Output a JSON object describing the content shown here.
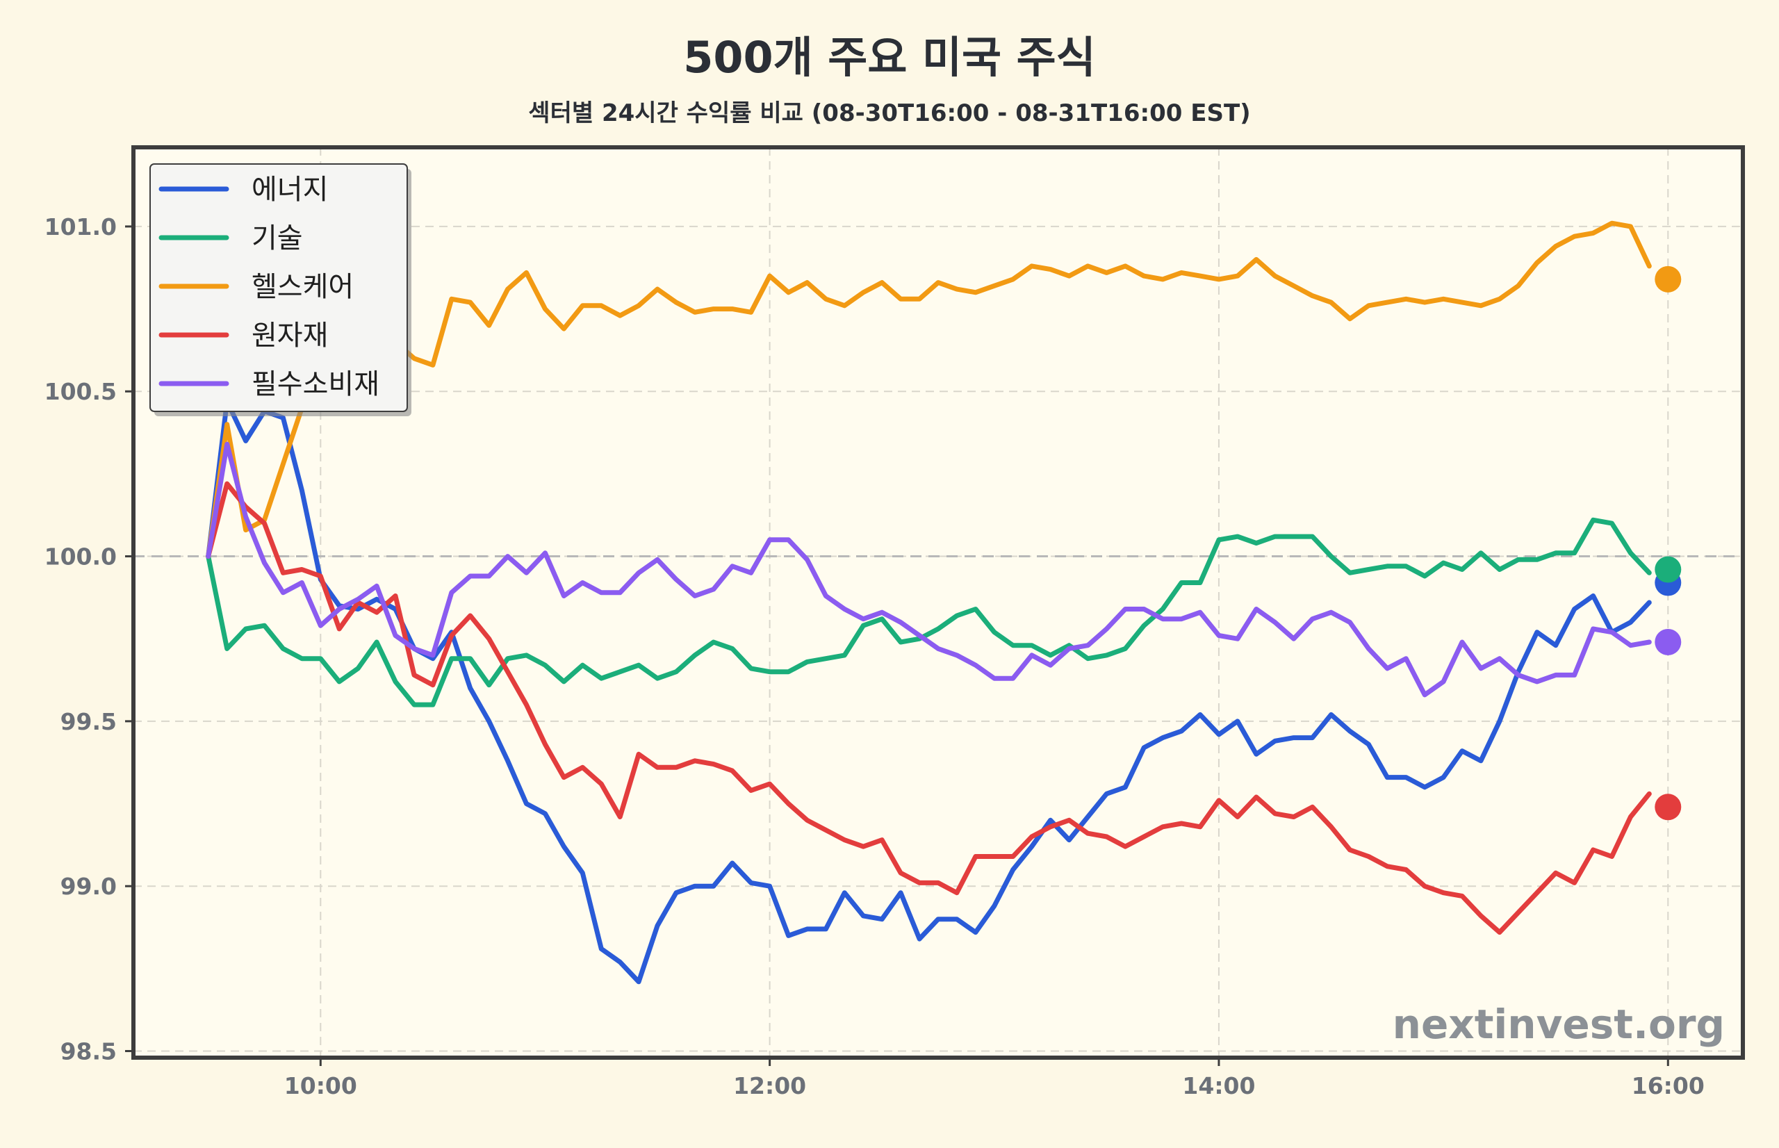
{
  "chart_data": {
    "type": "line",
    "title": "500개 주요 미국 주식",
    "subtitle": "섹터별 24시간 수익률 비교 (08-30T16:00 - 08-31T16:00 EST)",
    "xlabel": "",
    "ylabel": "",
    "watermark": "nextinvest.org",
    "x_ticks": [
      "10:00",
      "12:00",
      "14:00",
      "16:00"
    ],
    "y_ticks": [
      "98.5",
      "99.0",
      "99.5",
      "100.0",
      "100.5",
      "101.0"
    ],
    "xlim": [
      "09:10",
      "16:20"
    ],
    "ylim": [
      98.48,
      101.24
    ],
    "baseline": 100.0,
    "grid": true,
    "legend_position": "top-left",
    "x": [
      "09:30",
      "09:35",
      "09:40",
      "09:45",
      "09:50",
      "09:55",
      "10:00",
      "10:05",
      "10:10",
      "10:15",
      "10:20",
      "10:25",
      "10:30",
      "10:35",
      "10:40",
      "10:45",
      "10:50",
      "10:55",
      "11:00",
      "11:05",
      "11:10",
      "11:15",
      "11:20",
      "11:25",
      "11:30",
      "11:35",
      "11:40",
      "11:45",
      "11:50",
      "11:55",
      "12:00",
      "12:05",
      "12:10",
      "12:15",
      "12:20",
      "12:25",
      "12:30",
      "12:35",
      "12:40",
      "12:45",
      "12:50",
      "12:55",
      "13:00",
      "13:05",
      "13:10",
      "13:15",
      "13:20",
      "13:25",
      "13:30",
      "13:35",
      "13:40",
      "13:45",
      "13:50",
      "13:55",
      "14:00",
      "14:05",
      "14:10",
      "14:15",
      "14:20",
      "14:25",
      "14:30",
      "14:35",
      "14:40",
      "14:45",
      "14:50",
      "14:55",
      "15:00",
      "15:05",
      "15:10",
      "15:15",
      "15:20",
      "15:25",
      "15:30",
      "15:35",
      "15:40",
      "15:45",
      "15:50",
      "15:55"
    ],
    "end_x": "16:00",
    "series": [
      {
        "name": "에너지",
        "color": "#2a5bd7",
        "values": [
          100.0,
          100.47,
          100.35,
          100.44,
          100.42,
          100.2,
          99.93,
          99.85,
          99.84,
          99.87,
          99.84,
          99.72,
          99.69,
          99.77,
          99.6,
          99.5,
          99.38,
          99.25,
          99.22,
          99.12,
          99.04,
          98.81,
          98.77,
          98.71,
          98.88,
          98.98,
          99.0,
          99.0,
          99.07,
          99.01,
          99.0,
          98.85,
          98.87,
          98.87,
          98.98,
          98.91,
          98.9,
          98.98,
          98.84,
          98.9,
          98.9,
          98.86,
          98.94,
          99.05,
          99.12,
          99.2,
          99.14,
          99.21,
          99.28,
          99.3,
          99.42,
          99.45,
          99.47,
          99.52,
          99.46,
          99.5,
          99.4,
          99.44,
          99.45,
          99.45,
          99.52,
          99.47,
          99.43,
          99.33,
          99.33,
          99.3,
          99.33,
          99.41,
          99.38,
          99.5,
          99.65,
          99.77,
          99.73,
          99.84,
          99.88,
          99.77,
          99.8,
          99.86
        ],
        "end_value": 99.92
      },
      {
        "name": "기술",
        "color": "#1bae7a",
        "values": [
          100.0,
          99.72,
          99.78,
          99.79,
          99.72,
          99.69,
          99.69,
          99.62,
          99.66,
          99.74,
          99.62,
          99.55,
          99.55,
          99.69,
          99.69,
          99.61,
          99.69,
          99.7,
          99.67,
          99.62,
          99.67,
          99.63,
          99.65,
          99.67,
          99.63,
          99.65,
          99.7,
          99.74,
          99.72,
          99.66,
          99.65,
          99.65,
          99.68,
          99.69,
          99.7,
          99.79,
          99.81,
          99.74,
          99.75,
          99.78,
          99.82,
          99.84,
          99.77,
          99.73,
          99.73,
          99.7,
          99.73,
          99.69,
          99.7,
          99.72,
          99.79,
          99.84,
          99.92,
          99.92,
          100.05,
          100.06,
          100.04,
          100.06,
          100.06,
          100.06,
          100.0,
          99.95,
          99.96,
          99.97,
          99.97,
          99.94,
          99.98,
          99.96,
          100.01,
          99.96,
          99.99,
          99.99,
          100.01,
          100.01,
          100.11,
          100.1,
          100.01,
          99.95
        ],
        "end_value": 99.96
      },
      {
        "name": "헬스케어",
        "color": "#f29a13",
        "values": [
          100.0,
          100.4,
          100.08,
          100.11,
          100.28,
          100.45,
          100.62,
          100.8,
          100.84,
          100.72,
          100.65,
          100.6,
          100.58,
          100.78,
          100.77,
          100.7,
          100.81,
          100.86,
          100.75,
          100.69,
          100.76,
          100.76,
          100.73,
          100.76,
          100.81,
          100.77,
          100.74,
          100.75,
          100.75,
          100.74,
          100.85,
          100.8,
          100.83,
          100.78,
          100.76,
          100.8,
          100.83,
          100.78,
          100.78,
          100.83,
          100.81,
          100.8,
          100.82,
          100.84,
          100.88,
          100.87,
          100.85,
          100.88,
          100.86,
          100.88,
          100.85,
          100.84,
          100.86,
          100.85,
          100.84,
          100.85,
          100.9,
          100.85,
          100.82,
          100.79,
          100.77,
          100.72,
          100.76,
          100.77,
          100.78,
          100.77,
          100.78,
          100.77,
          100.76,
          100.78,
          100.82,
          100.89,
          100.94,
          100.97,
          100.98,
          101.01,
          101.0,
          100.88
        ],
        "end_value": 100.84
      },
      {
        "name": "원자재",
        "color": "#e33d3d",
        "values": [
          100.0,
          100.22,
          100.15,
          100.1,
          99.95,
          99.96,
          99.94,
          99.78,
          99.86,
          99.83,
          99.88,
          99.64,
          99.61,
          99.76,
          99.82,
          99.75,
          99.65,
          99.55,
          99.43,
          99.33,
          99.36,
          99.31,
          99.21,
          99.4,
          99.36,
          99.36,
          99.38,
          99.37,
          99.35,
          99.29,
          99.31,
          99.25,
          99.2,
          99.17,
          99.14,
          99.12,
          99.14,
          99.04,
          99.01,
          99.01,
          98.98,
          99.09,
          99.09,
          99.09,
          99.15,
          99.18,
          99.2,
          99.16,
          99.15,
          99.12,
          99.15,
          99.18,
          99.19,
          99.18,
          99.26,
          99.21,
          99.27,
          99.22,
          99.21,
          99.24,
          99.18,
          99.11,
          99.09,
          99.06,
          99.05,
          99.0,
          98.98,
          98.97,
          98.91,
          98.86,
          98.92,
          98.98,
          99.04,
          99.01,
          99.11,
          99.09,
          99.21,
          99.28
        ],
        "end_value": 99.24
      },
      {
        "name": "필수소비재",
        "color": "#8b5cf0",
        "values": [
          100.0,
          100.34,
          100.12,
          99.98,
          99.89,
          99.92,
          99.79,
          99.84,
          99.87,
          99.91,
          99.76,
          99.72,
          99.7,
          99.89,
          99.94,
          99.94,
          100.0,
          99.95,
          100.01,
          99.88,
          99.92,
          99.89,
          99.89,
          99.95,
          99.99,
          99.93,
          99.88,
          99.9,
          99.97,
          99.95,
          100.05,
          100.05,
          99.99,
          99.88,
          99.84,
          99.81,
          99.83,
          99.8,
          99.76,
          99.72,
          99.7,
          99.67,
          99.63,
          99.63,
          99.7,
          99.67,
          99.72,
          99.73,
          99.78,
          99.84,
          99.84,
          99.81,
          99.81,
          99.83,
          99.76,
          99.75,
          99.84,
          99.8,
          99.75,
          99.81,
          99.83,
          99.8,
          99.72,
          99.66,
          99.69,
          99.58,
          99.62,
          99.74,
          99.66,
          99.69,
          99.64,
          99.62,
          99.64,
          99.64,
          99.78,
          99.77,
          99.73,
          99.74
        ],
        "end_value": 99.74
      }
    ]
  }
}
